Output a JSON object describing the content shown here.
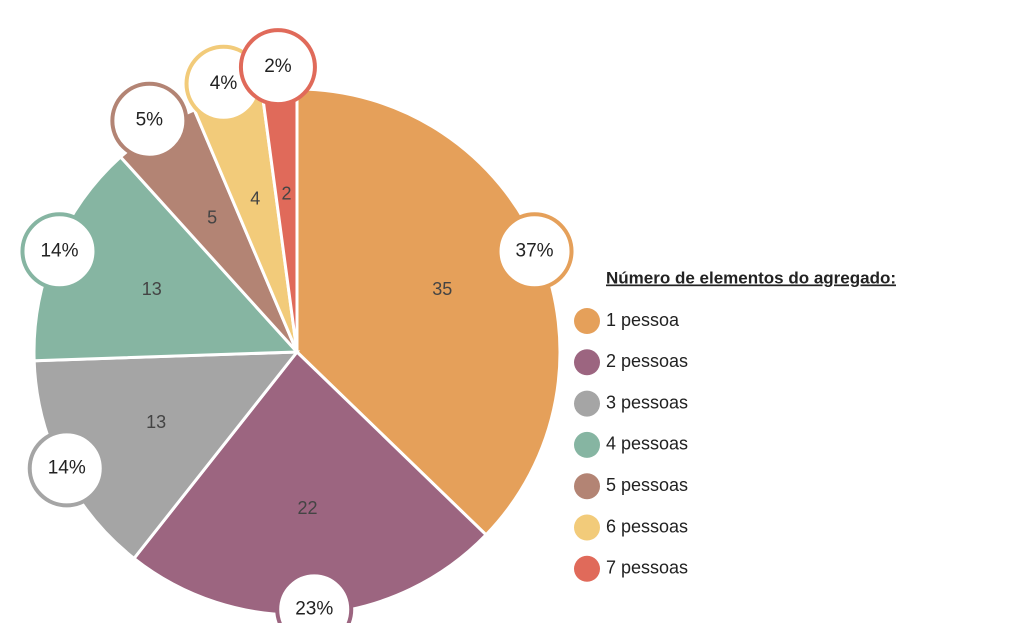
{
  "chart_data": {
    "type": "pie",
    "legend_title": "Número de elementos do agregado:",
    "categories": [
      "1 pessoa",
      "2 pessoas",
      "3 pessoas",
      "4 pessoas",
      "5 pessoas",
      "6 pessoas",
      "7 pessoas"
    ],
    "values": [
      35,
      22,
      13,
      13,
      5,
      4,
      2
    ],
    "percent_labels": [
      "37%",
      "23%",
      "14%",
      "14%",
      "5%",
      "4%",
      "2%"
    ],
    "colors": [
      "#e5a05a",
      "#9c6580",
      "#a5a5a5",
      "#86b5a2",
      "#b38474",
      "#f2cb7a",
      "#e06a5a"
    ],
    "legend": "right"
  }
}
